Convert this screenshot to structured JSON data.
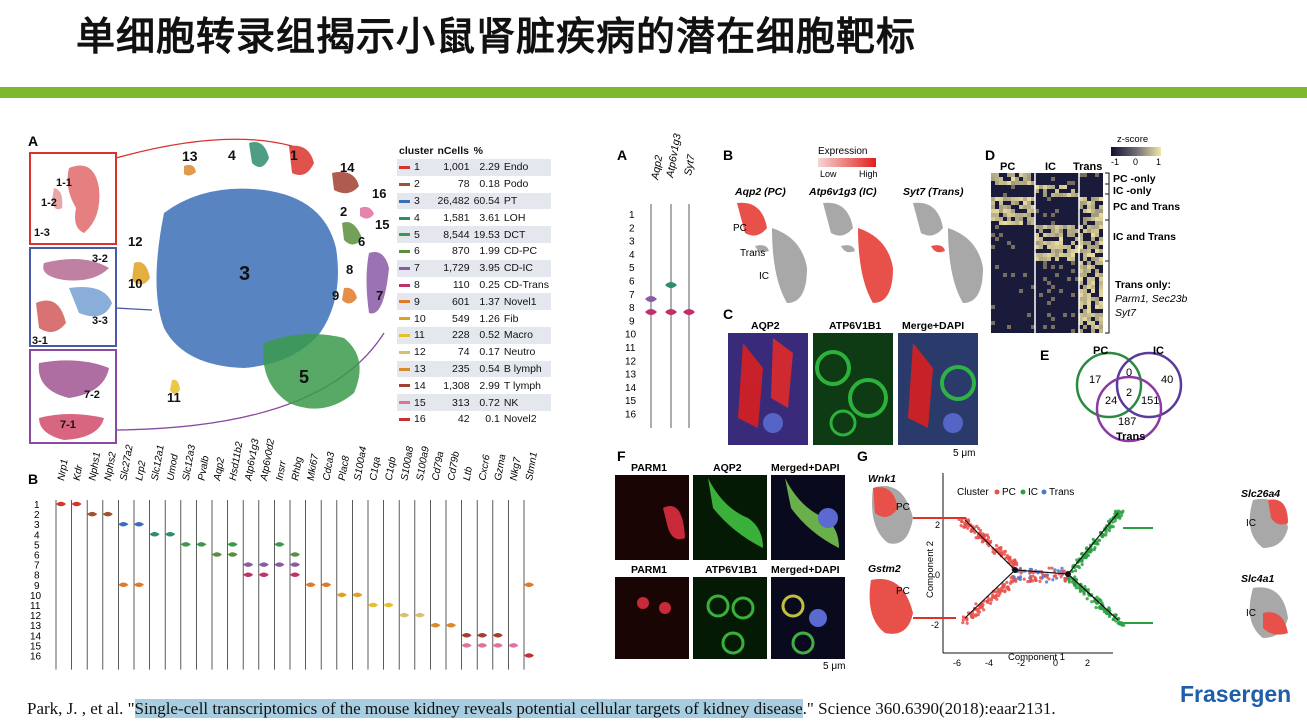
{
  "slide": {
    "title": "单细胞转录组揭示小鼠肾脏疾病的潜在细胞靶标",
    "accent_color": "#7cb72e",
    "citation": {
      "before": "Park, J. , et al. \"",
      "highlight": "Single-cell transcriptomics of the mouse kidney reveals potential cellular targets of kidney disease",
      "after": ".\" Science 360.6390(2018):eaar2131."
    },
    "brand": "Frasergen"
  },
  "left_figure": {
    "panel_a": "A",
    "panel_b": "B",
    "cluster_labels": [
      "1",
      "2",
      "3",
      "4",
      "5",
      "6",
      "7",
      "8",
      "9",
      "10",
      "11",
      "12",
      "13",
      "14",
      "15",
      "16"
    ],
    "subcluster_labels": [
      "1-1",
      "1-2",
      "1-3",
      "3-2",
      "3-3",
      "3-1",
      "7-2",
      "7-1"
    ],
    "table": {
      "headers": [
        "cluster",
        "nCells",
        "%",
        ""
      ],
      "rows": [
        {
          "cluster": "1",
          "n": "1,001",
          "pct": "2.29",
          "type": "Endo",
          "color": "#d9342b"
        },
        {
          "cluster": "2",
          "n": "78",
          "pct": "0.18",
          "type": "Podo",
          "color": "#a0522d"
        },
        {
          "cluster": "3",
          "n": "26,482",
          "pct": "60.54",
          "type": "PT",
          "color": "#3b6fb6"
        },
        {
          "cluster": "4",
          "n": "1,581",
          "pct": "3.61",
          "type": "LOH",
          "color": "#2f8c6e"
        },
        {
          "cluster": "5",
          "n": "8,544",
          "pct": "19.53",
          "type": "DCT",
          "color": "#3a9a4a"
        },
        {
          "cluster": "6",
          "n": "870",
          "pct": "1.99",
          "type": "CD-PC",
          "color": "#5a8f3c"
        },
        {
          "cluster": "7",
          "n": "1,729",
          "pct": "3.95",
          "type": "CD-IC",
          "color": "#8a5aa8"
        },
        {
          "cluster": "8",
          "n": "110",
          "pct": "0.25",
          "type": "CD-Trans",
          "color": "#c0306a"
        },
        {
          "cluster": "9",
          "n": "601",
          "pct": "1.37",
          "type": "Novel1",
          "color": "#e07a28"
        },
        {
          "cluster": "10",
          "n": "549",
          "pct": "1.26",
          "type": "Fib",
          "color": "#e0a020"
        },
        {
          "cluster": "11",
          "n": "228",
          "pct": "0.52",
          "type": "Macro",
          "color": "#e6c02a"
        },
        {
          "cluster": "12",
          "n": "74",
          "pct": "0.17",
          "type": "Neutro",
          "color": "#d8c070"
        },
        {
          "cluster": "13",
          "n": "235",
          "pct": "0.54",
          "type": "B lymph",
          "color": "#d98a2c"
        },
        {
          "cluster": "14",
          "n": "1,308",
          "pct": "2.99",
          "type": "T lymph",
          "color": "#a04030"
        },
        {
          "cluster": "15",
          "n": "313",
          "pct": "0.72",
          "type": "NK",
          "color": "#e070a0"
        },
        {
          "cluster": "16",
          "n": "42",
          "pct": "0.1",
          "type": "Novel2",
          "color": "#c83030"
        }
      ]
    },
    "genes": [
      "Nrp1",
      "Kdr",
      "Nphs1",
      "Nphs2",
      "Slc27a2",
      "Lrp2",
      "Slc12a1",
      "Umod",
      "Slc12a3",
      "Pvalb",
      "Aqp2",
      "Hsd11b2",
      "Atp6v1g3",
      "Atp6v0d2",
      "Insrr",
      "Rhbg",
      "Mki67",
      "Cdca3",
      "Plac8",
      "S100a4",
      "C1qa",
      "C1qb",
      "S100a8",
      "S100a9",
      "Cd79a",
      "Cd79b",
      "Ltb",
      "Cxcr6",
      "Gzma",
      "Nkg7",
      "Stmn1"
    ],
    "violin_rows": [
      "1",
      "2",
      "3",
      "4",
      "5",
      "6",
      "7",
      "8",
      "9",
      "10",
      "11",
      "12",
      "13",
      "14",
      "15",
      "16"
    ]
  },
  "right_figure": {
    "labels": {
      "A": "A",
      "B": "B",
      "C": "C",
      "D": "D",
      "E": "E",
      "F": "F",
      "G": "G"
    },
    "panel_a_genes": [
      "Aqp2",
      "Atp6v1g3",
      "Syt7"
    ],
    "panel_b": {
      "legend_title": "Expression",
      "low": "Low",
      "high": "High",
      "titles": [
        "Aqp2 (PC)",
        "Atp6v1g3 (IC)",
        "Syt7 (Trans)"
      ],
      "region_labels": [
        "PC",
        "Trans",
        "IC"
      ]
    },
    "panel_c": {
      "channels": [
        "AQP2",
        "ATP6V1B1",
        "Merge+DAPI"
      ],
      "scale": "5 μm"
    },
    "panel_d": {
      "zscore_title": "z-score",
      "zscore_ticks": [
        "-1",
        "0",
        "1"
      ],
      "columns": [
        "PC",
        "IC",
        "Trans"
      ],
      "groups": [
        "PC -only",
        "IC -only",
        "PC and Trans",
        "IC and Trans",
        "Trans only:"
      ],
      "trans_genes": "Parm1, Sec23b",
      "trans_genes2": "Syt7"
    },
    "panel_e": {
      "sets": [
        "PC",
        "IC",
        "Trans"
      ],
      "values": {
        "pc_only": "17",
        "pc_ic": "0",
        "ic_only": "40",
        "all": "2",
        "pc_trans": "24",
        "ic_trans": "151",
        "trans_only": "187"
      }
    },
    "panel_f": {
      "row1": [
        "PARM1",
        "AQP2",
        "Merged+DAPI"
      ],
      "row2": [
        "PARM1",
        "ATP6V1B1",
        "Merged+DAPI"
      ],
      "scale": "5 μm"
    },
    "panel_g": {
      "legend": [
        "Cluster",
        "PC",
        "IC",
        "Trans"
      ],
      "genes": [
        "Wnk1",
        "Gstm2",
        "Slc26a4",
        "Slc4a1"
      ],
      "region": [
        "PC",
        "PC",
        "IC",
        "IC"
      ],
      "xlabel": "Component 1",
      "ylabel": "Component 2",
      "xticks": [
        "-6",
        "-4",
        "-2",
        "0",
        "2"
      ],
      "yticks": [
        "2",
        "0",
        "-2"
      ]
    }
  }
}
